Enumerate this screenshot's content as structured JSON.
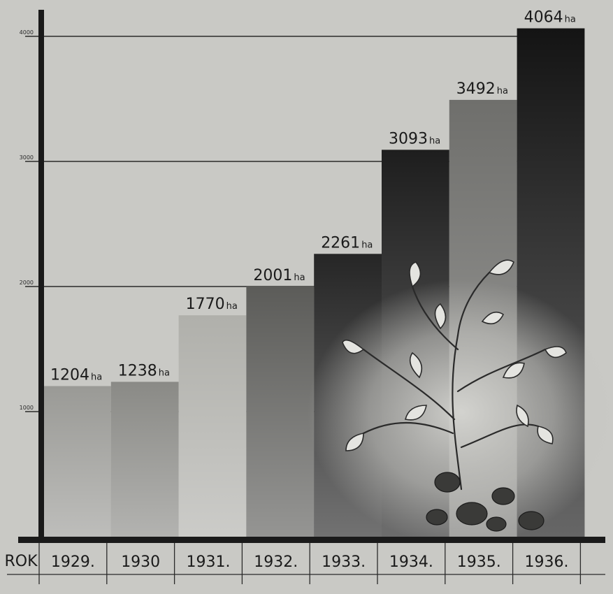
{
  "chart_data": {
    "type": "bar",
    "x_header": "ROK",
    "categories": [
      "1929.",
      "1930",
      "1931.",
      "1932.",
      "1933.",
      "1934.",
      "1935.",
      "1936."
    ],
    "values": [
      1204,
      1238,
      1770,
      2001,
      2261,
      3093,
      3492,
      4064
    ],
    "value_labels": [
      "1204",
      "1238",
      "1770",
      "2001",
      "2261",
      "3093",
      "3492",
      "4064"
    ],
    "unit": "ha",
    "yticks": [
      {
        "value": 1000,
        "label": "1000"
      },
      {
        "value": 2000,
        "label": "2000"
      },
      {
        "value": 3000,
        "label": "3000"
      },
      {
        "value": 4000,
        "label": "4000"
      }
    ],
    "ylim": [
      0,
      4000
    ],
    "grid": true,
    "bar_colors": [
      "#9a9a96",
      "#8a8a86",
      "#b0b0ab",
      "#5c5c59",
      "#262626",
      "#1e1e1e",
      "#6f6f6c",
      "#141414"
    ]
  }
}
